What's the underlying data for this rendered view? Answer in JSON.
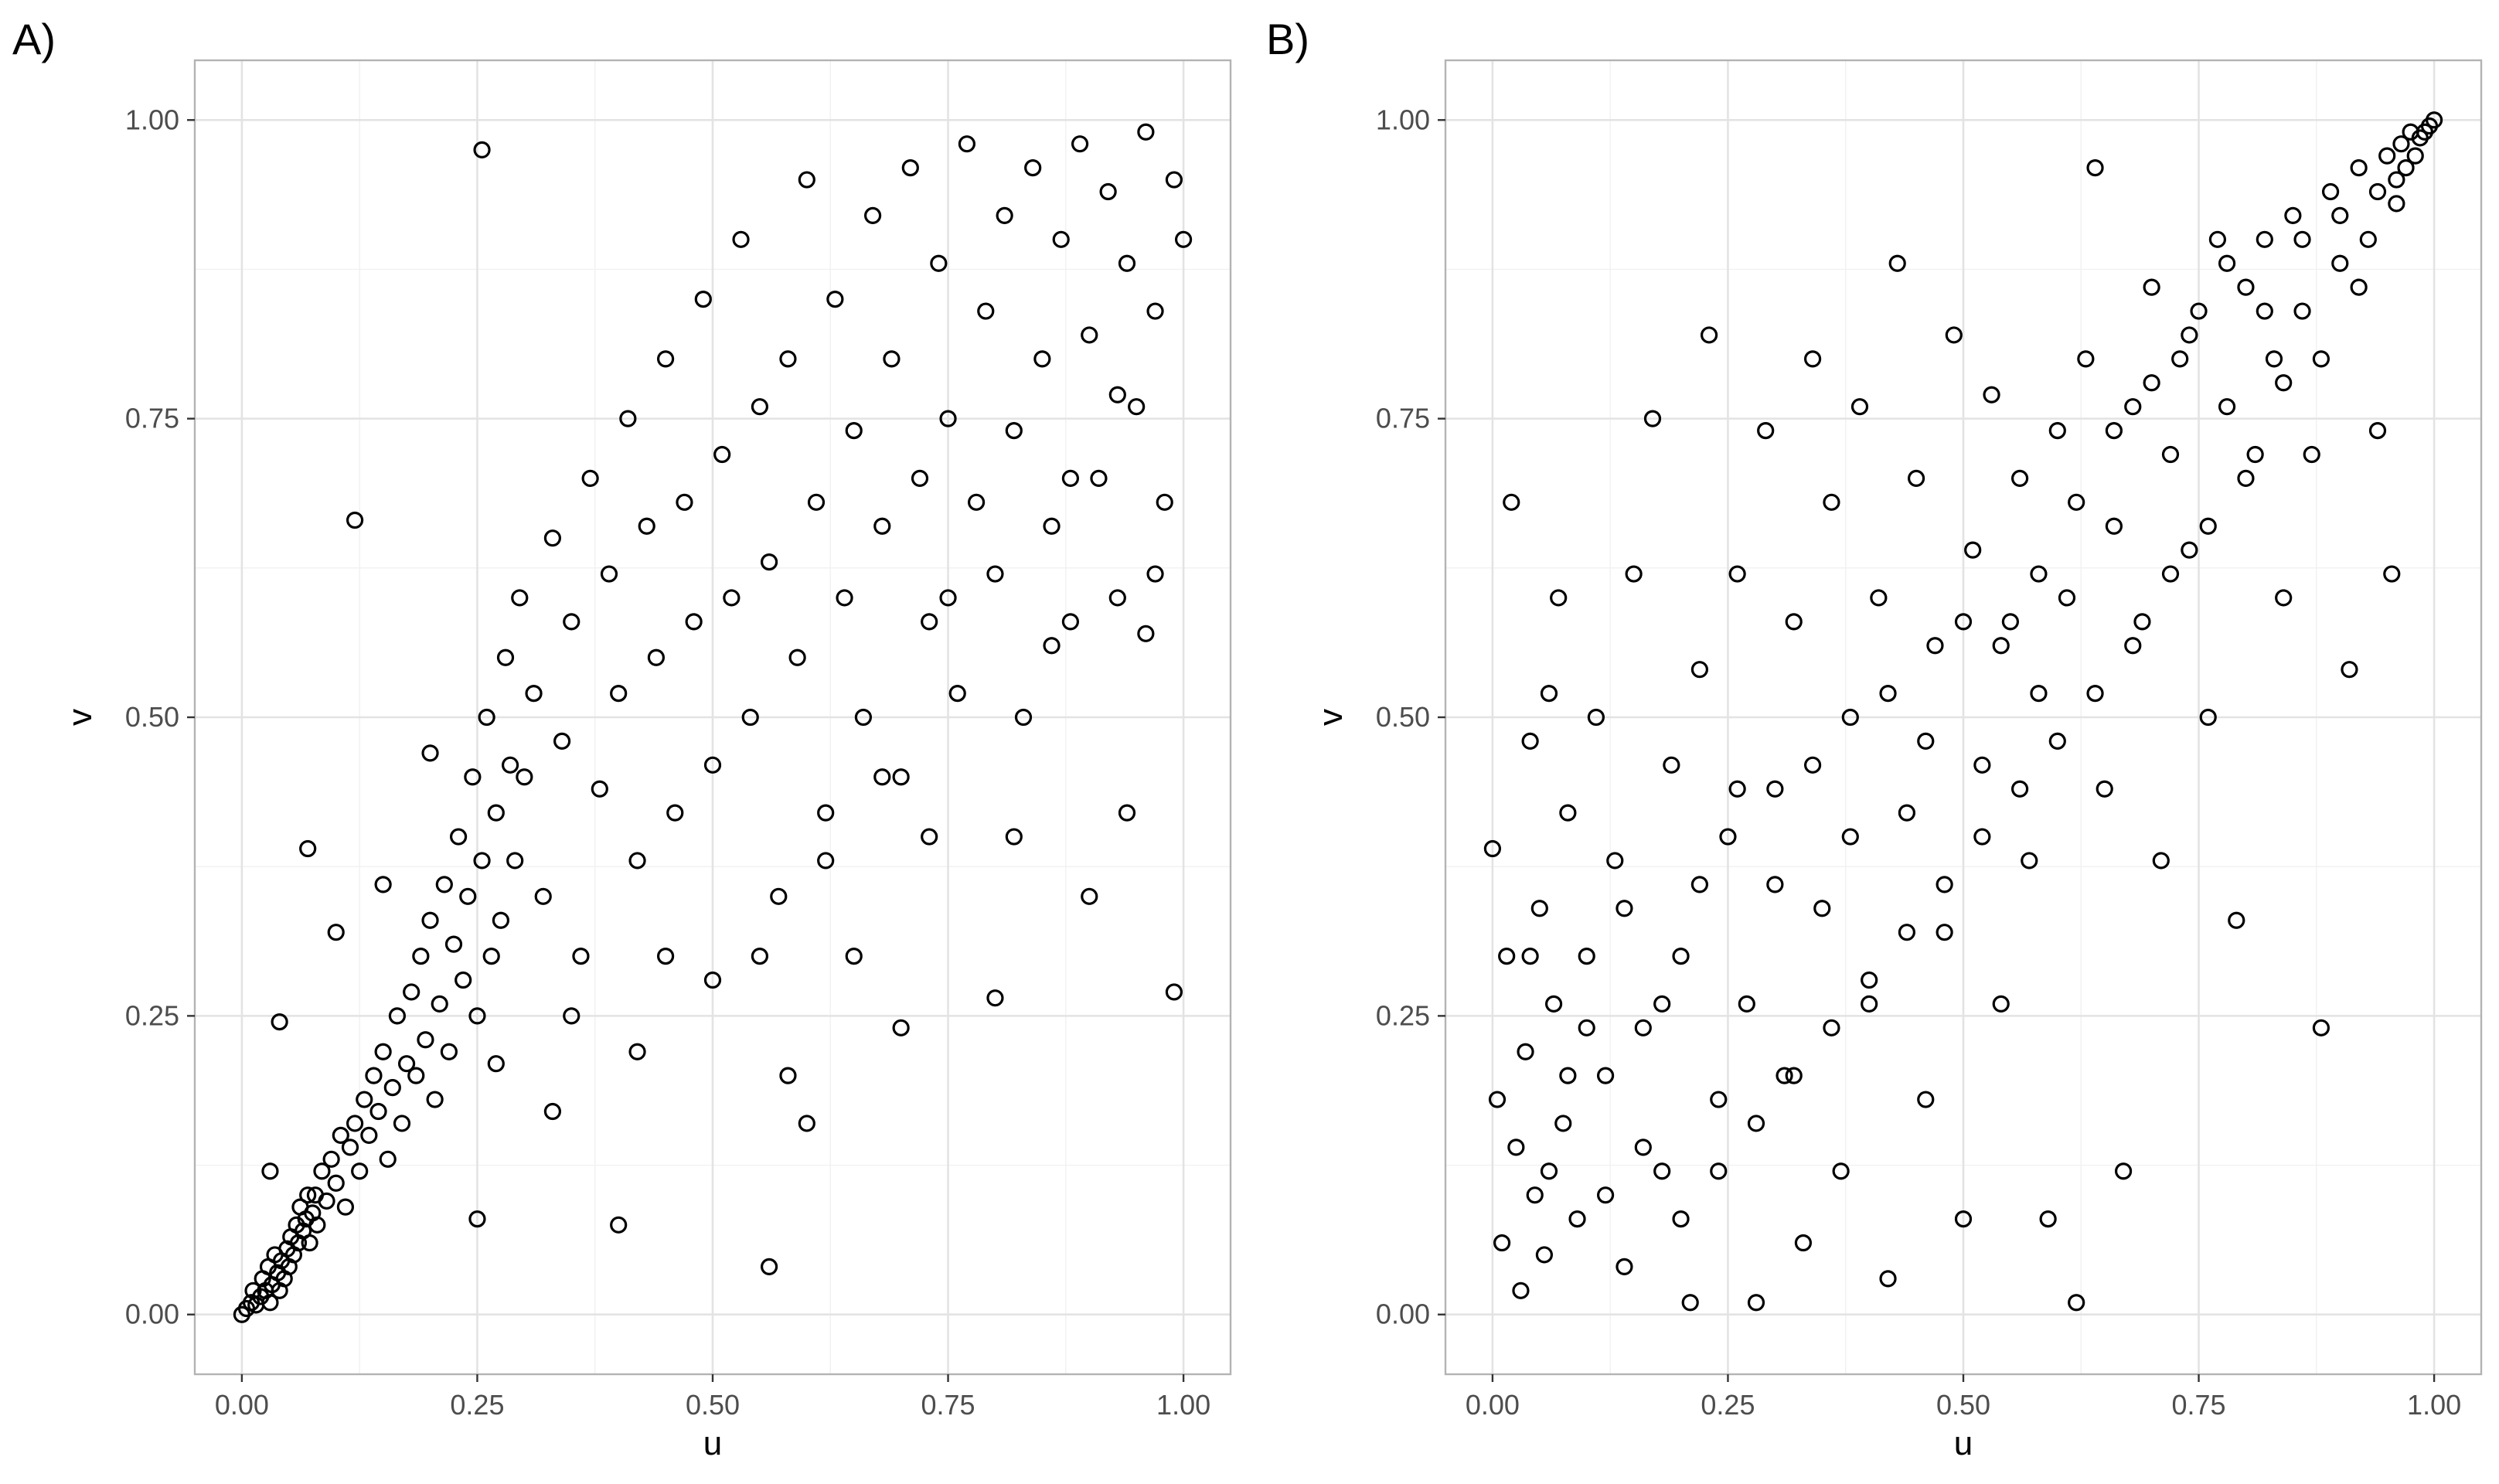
{
  "chart_data": [
    {
      "panel_label": "A)",
      "type": "scatter",
      "xlabel": "u",
      "ylabel": "v",
      "xlim": [
        -0.05,
        1.05
      ],
      "ylim": [
        -0.05,
        1.05
      ],
      "xticks": [
        "0.00",
        "0.25",
        "0.50",
        "0.75",
        "1.00"
      ],
      "yticks": [
        "0.00",
        "0.25",
        "0.50",
        "0.75",
        "1.00"
      ],
      "grid": true,
      "marker": "open circle",
      "color": "#000000",
      "points": [
        [
          0.0,
          0.0
        ],
        [
          0.005,
          0.005
        ],
        [
          0.01,
          0.01
        ],
        [
          0.012,
          0.02
        ],
        [
          0.015,
          0.008
        ],
        [
          0.02,
          0.015
        ],
        [
          0.022,
          0.03
        ],
        [
          0.025,
          0.02
        ],
        [
          0.028,
          0.04
        ],
        [
          0.03,
          0.01
        ],
        [
          0.032,
          0.025
        ],
        [
          0.035,
          0.05
        ],
        [
          0.038,
          0.035
        ],
        [
          0.04,
          0.02
        ],
        [
          0.042,
          0.045
        ],
        [
          0.045,
          0.03
        ],
        [
          0.048,
          0.055
        ],
        [
          0.05,
          0.04
        ],
        [
          0.052,
          0.065
        ],
        [
          0.055,
          0.05
        ],
        [
          0.058,
          0.075
        ],
        [
          0.06,
          0.06
        ],
        [
          0.062,
          0.09
        ],
        [
          0.065,
          0.07
        ],
        [
          0.068,
          0.08
        ],
        [
          0.07,
          0.1
        ],
        [
          0.072,
          0.06
        ],
        [
          0.075,
          0.085
        ],
        [
          0.078,
          0.1
        ],
        [
          0.08,
          0.075
        ],
        [
          0.085,
          0.12
        ],
        [
          0.09,
          0.095
        ],
        [
          0.095,
          0.13
        ],
        [
          0.1,
          0.11
        ],
        [
          0.105,
          0.15
        ],
        [
          0.11,
          0.09
        ],
        [
          0.115,
          0.14
        ],
        [
          0.12,
          0.16
        ],
        [
          0.125,
          0.12
        ],
        [
          0.13,
          0.18
        ],
        [
          0.135,
          0.15
        ],
        [
          0.14,
          0.2
        ],
        [
          0.145,
          0.17
        ],
        [
          0.15,
          0.22
        ],
        [
          0.155,
          0.13
        ],
        [
          0.16,
          0.19
        ],
        [
          0.165,
          0.25
        ],
        [
          0.17,
          0.16
        ],
        [
          0.175,
          0.21
        ],
        [
          0.18,
          0.27
        ],
        [
          0.185,
          0.2
        ],
        [
          0.19,
          0.3
        ],
        [
          0.195,
          0.23
        ],
        [
          0.2,
          0.33
        ],
        [
          0.205,
          0.18
        ],
        [
          0.21,
          0.26
        ],
        [
          0.215,
          0.36
        ],
        [
          0.22,
          0.22
        ],
        [
          0.225,
          0.31
        ],
        [
          0.23,
          0.4
        ],
        [
          0.235,
          0.28
        ],
        [
          0.24,
          0.35
        ],
        [
          0.245,
          0.45
        ],
        [
          0.25,
          0.25
        ],
        [
          0.255,
          0.38
        ],
        [
          0.26,
          0.5
        ],
        [
          0.265,
          0.3
        ],
        [
          0.27,
          0.42
        ],
        [
          0.275,
          0.33
        ],
        [
          0.28,
          0.55
        ],
        [
          0.285,
          0.46
        ],
        [
          0.29,
          0.38
        ],
        [
          0.295,
          0.6
        ],
        [
          0.3,
          0.45
        ],
        [
          0.31,
          0.52
        ],
        [
          0.32,
          0.35
        ],
        [
          0.33,
          0.65
        ],
        [
          0.34,
          0.48
        ],
        [
          0.35,
          0.58
        ],
        [
          0.36,
          0.3
        ],
        [
          0.37,
          0.7
        ],
        [
          0.38,
          0.44
        ],
        [
          0.39,
          0.62
        ],
        [
          0.4,
          0.52
        ],
        [
          0.41,
          0.75
        ],
        [
          0.42,
          0.38
        ],
        [
          0.43,
          0.66
        ],
        [
          0.44,
          0.55
        ],
        [
          0.45,
          0.8
        ],
        [
          0.46,
          0.42
        ],
        [
          0.47,
          0.68
        ],
        [
          0.48,
          0.58
        ],
        [
          0.49,
          0.85
        ],
        [
          0.5,
          0.46
        ],
        [
          0.51,
          0.72
        ],
        [
          0.52,
          0.6
        ],
        [
          0.53,
          0.9
        ],
        [
          0.54,
          0.5
        ],
        [
          0.55,
          0.76
        ],
        [
          0.56,
          0.63
        ],
        [
          0.57,
          0.35
        ],
        [
          0.58,
          0.8
        ],
        [
          0.59,
          0.55
        ],
        [
          0.6,
          0.95
        ],
        [
          0.61,
          0.68
        ],
        [
          0.62,
          0.42
        ],
        [
          0.63,
          0.85
        ],
        [
          0.64,
          0.6
        ],
        [
          0.65,
          0.74
        ],
        [
          0.66,
          0.5
        ],
        [
          0.67,
          0.92
        ],
        [
          0.68,
          0.66
        ],
        [
          0.69,
          0.8
        ],
        [
          0.7,
          0.45
        ],
        [
          0.71,
          0.96
        ],
        [
          0.72,
          0.7
        ],
        [
          0.73,
          0.58
        ],
        [
          0.74,
          0.88
        ],
        [
          0.75,
          0.75
        ],
        [
          0.76,
          0.52
        ],
        [
          0.77,
          0.98
        ],
        [
          0.78,
          0.68
        ],
        [
          0.79,
          0.84
        ],
        [
          0.8,
          0.62
        ],
        [
          0.81,
          0.92
        ],
        [
          0.82,
          0.74
        ],
        [
          0.83,
          0.5
        ],
        [
          0.84,
          0.96
        ],
        [
          0.85,
          0.8
        ],
        [
          0.86,
          0.66
        ],
        [
          0.87,
          0.9
        ],
        [
          0.88,
          0.58
        ],
        [
          0.89,
          0.98
        ],
        [
          0.9,
          0.82
        ],
        [
          0.91,
          0.7
        ],
        [
          0.92,
          0.94
        ],
        [
          0.93,
          0.6
        ],
        [
          0.94,
          0.88
        ],
        [
          0.95,
          0.76
        ],
        [
          0.96,
          0.99
        ],
        [
          0.97,
          0.84
        ],
        [
          0.98,
          0.68
        ],
        [
          0.99,
          0.95
        ],
        [
          1.0,
          0.9
        ],
        [
          0.255,
          0.975
        ],
        [
          0.12,
          0.665
        ],
        [
          0.4,
          0.075
        ],
        [
          0.56,
          0.04
        ],
        [
          0.99,
          0.27
        ],
        [
          0.7,
          0.24
        ],
        [
          0.8,
          0.265
        ],
        [
          0.25,
          0.08
        ],
        [
          0.07,
          0.39
        ],
        [
          0.03,
          0.12
        ],
        [
          0.04,
          0.245
        ],
        [
          0.6,
          0.16
        ],
        [
          0.86,
          0.56
        ],
        [
          0.94,
          0.42
        ],
        [
          0.33,
          0.17
        ],
        [
          0.45,
          0.3
        ],
        [
          0.58,
          0.2
        ],
        [
          0.65,
          0.3
        ],
        [
          0.73,
          0.4
        ],
        [
          0.82,
          0.4
        ],
        [
          0.9,
          0.35
        ],
        [
          0.96,
          0.57
        ],
        [
          0.1,
          0.32
        ],
        [
          0.15,
          0.36
        ],
        [
          0.2,
          0.47
        ],
        [
          0.27,
          0.21
        ],
        [
          0.35,
          0.25
        ],
        [
          0.42,
          0.22
        ],
        [
          0.5,
          0.28
        ],
        [
          0.55,
          0.3
        ],
        [
          0.62,
          0.38
        ],
        [
          0.68,
          0.45
        ],
        [
          0.75,
          0.6
        ],
        [
          0.88,
          0.7
        ],
        [
          0.93,
          0.77
        ],
        [
          0.97,
          0.62
        ]
      ]
    },
    {
      "panel_label": "B)",
      "type": "scatter",
      "xlabel": "u",
      "ylabel": "v",
      "xlim": [
        -0.05,
        1.05
      ],
      "ylim": [
        -0.05,
        1.05
      ],
      "xticks": [
        "0.00",
        "0.25",
        "0.50",
        "0.75",
        "1.00"
      ],
      "yticks": [
        "0.00",
        "0.25",
        "0.50",
        "0.75",
        "1.00"
      ],
      "grid": true,
      "marker": "open circle",
      "color": "#000000",
      "points": [
        [
          0.0,
          0.39
        ],
        [
          0.005,
          0.18
        ],
        [
          0.01,
          0.06
        ],
        [
          0.015,
          0.3
        ],
        [
          0.02,
          0.68
        ],
        [
          0.025,
          0.14
        ],
        [
          0.03,
          0.02
        ],
        [
          0.035,
          0.22
        ],
        [
          0.04,
          0.48
        ],
        [
          0.045,
          0.1
        ],
        [
          0.05,
          0.34
        ],
        [
          0.055,
          0.05
        ],
        [
          0.06,
          0.52
        ],
        [
          0.065,
          0.26
        ],
        [
          0.07,
          0.6
        ],
        [
          0.075,
          0.16
        ],
        [
          0.08,
          0.42
        ],
        [
          0.09,
          0.08
        ],
        [
          0.1,
          0.3
        ],
        [
          0.11,
          0.5
        ],
        [
          0.12,
          0.2
        ],
        [
          0.13,
          0.38
        ],
        [
          0.14,
          0.04
        ],
        [
          0.15,
          0.62
        ],
        [
          0.16,
          0.24
        ],
        [
          0.17,
          0.75
        ],
        [
          0.18,
          0.12
        ],
        [
          0.19,
          0.46
        ],
        [
          0.2,
          0.3
        ],
        [
          0.21,
          0.01
        ],
        [
          0.22,
          0.54
        ],
        [
          0.23,
          0.82
        ],
        [
          0.24,
          0.18
        ],
        [
          0.25,
          0.4
        ],
        [
          0.26,
          0.62
        ],
        [
          0.27,
          0.26
        ],
        [
          0.28,
          0.01
        ],
        [
          0.29,
          0.74
        ],
        [
          0.3,
          0.44
        ],
        [
          0.31,
          0.2
        ],
        [
          0.32,
          0.58
        ],
        [
          0.33,
          0.06
        ],
        [
          0.34,
          0.8
        ],
        [
          0.35,
          0.34
        ],
        [
          0.36,
          0.68
        ],
        [
          0.37,
          0.12
        ],
        [
          0.38,
          0.5
        ],
        [
          0.39,
          0.76
        ],
        [
          0.4,
          0.26
        ],
        [
          0.41,
          0.6
        ],
        [
          0.42,
          0.03
        ],
        [
          0.43,
          0.88
        ],
        [
          0.44,
          0.42
        ],
        [
          0.45,
          0.7
        ],
        [
          0.46,
          0.18
        ],
        [
          0.47,
          0.56
        ],
        [
          0.48,
          0.32
        ],
        [
          0.49,
          0.82
        ],
        [
          0.5,
          0.08
        ],
        [
          0.51,
          0.64
        ],
        [
          0.52,
          0.46
        ],
        [
          0.53,
          0.77
        ],
        [
          0.54,
          0.26
        ],
        [
          0.55,
          0.58
        ],
        [
          0.56,
          0.7
        ],
        [
          0.57,
          0.38
        ],
        [
          0.58,
          0.52
        ],
        [
          0.59,
          0.08
        ],
        [
          0.6,
          0.74
        ],
        [
          0.61,
          0.6
        ],
        [
          0.62,
          0.01
        ],
        [
          0.63,
          0.8
        ],
        [
          0.64,
          0.96
        ],
        [
          0.65,
          0.44
        ],
        [
          0.66,
          0.66
        ],
        [
          0.67,
          0.12
        ],
        [
          0.68,
          0.76
        ],
        [
          0.69,
          0.58
        ],
        [
          0.7,
          0.86
        ],
        [
          0.71,
          0.38
        ],
        [
          0.72,
          0.72
        ],
        [
          0.73,
          0.8
        ],
        [
          0.74,
          0.64
        ],
        [
          0.75,
          0.84
        ],
        [
          0.76,
          0.5
        ],
        [
          0.77,
          0.9
        ],
        [
          0.78,
          0.76
        ],
        [
          0.79,
          0.33
        ],
        [
          0.8,
          0.86
        ],
        [
          0.81,
          0.72
        ],
        [
          0.82,
          0.9
        ],
        [
          0.83,
          0.8
        ],
        [
          0.84,
          0.6
        ],
        [
          0.85,
          0.92
        ],
        [
          0.86,
          0.84
        ],
        [
          0.87,
          0.72
        ],
        [
          0.88,
          0.24
        ],
        [
          0.89,
          0.94
        ],
        [
          0.9,
          0.88
        ],
        [
          0.91,
          0.54
        ],
        [
          0.92,
          0.96
        ],
        [
          0.93,
          0.9
        ],
        [
          0.94,
          0.74
        ],
        [
          0.95,
          0.97
        ],
        [
          0.955,
          0.62
        ],
        [
          0.96,
          0.95
        ],
        [
          0.965,
          0.98
        ],
        [
          0.97,
          0.96
        ],
        [
          0.975,
          0.99
        ],
        [
          0.98,
          0.97
        ],
        [
          0.985,
          0.985
        ],
        [
          0.99,
          0.99
        ],
        [
          0.995,
          0.995
        ],
        [
          1.0,
          1.0
        ],
        [
          0.92,
          0.86
        ],
        [
          0.88,
          0.8
        ],
        [
          0.84,
          0.78
        ],
        [
          0.8,
          0.7
        ],
        [
          0.76,
          0.66
        ],
        [
          0.72,
          0.62
        ],
        [
          0.68,
          0.56
        ],
        [
          0.64,
          0.52
        ],
        [
          0.6,
          0.48
        ],
        [
          0.56,
          0.44
        ],
        [
          0.52,
          0.4
        ],
        [
          0.48,
          0.36
        ],
        [
          0.44,
          0.32
        ],
        [
          0.4,
          0.28
        ],
        [
          0.36,
          0.24
        ],
        [
          0.32,
          0.2
        ],
        [
          0.28,
          0.16
        ],
        [
          0.24,
          0.12
        ],
        [
          0.2,
          0.08
        ],
        [
          0.16,
          0.14
        ],
        [
          0.12,
          0.1
        ],
        [
          0.08,
          0.2
        ],
        [
          0.04,
          0.3
        ],
        [
          0.06,
          0.12
        ],
        [
          0.1,
          0.24
        ],
        [
          0.14,
          0.34
        ],
        [
          0.18,
          0.26
        ],
        [
          0.22,
          0.36
        ],
        [
          0.26,
          0.44
        ],
        [
          0.3,
          0.36
        ],
        [
          0.34,
          0.46
        ],
        [
          0.38,
          0.4
        ],
        [
          0.42,
          0.52
        ],
        [
          0.46,
          0.48
        ],
        [
          0.5,
          0.58
        ],
        [
          0.54,
          0.56
        ],
        [
          0.58,
          0.62
        ],
        [
          0.62,
          0.68
        ],
        [
          0.66,
          0.74
        ],
        [
          0.7,
          0.78
        ],
        [
          0.74,
          0.82
        ],
        [
          0.78,
          0.88
        ],
        [
          0.82,
          0.84
        ],
        [
          0.86,
          0.9
        ],
        [
          0.9,
          0.92
        ],
        [
          0.94,
          0.94
        ],
        [
          0.96,
          0.93
        ]
      ]
    }
  ]
}
